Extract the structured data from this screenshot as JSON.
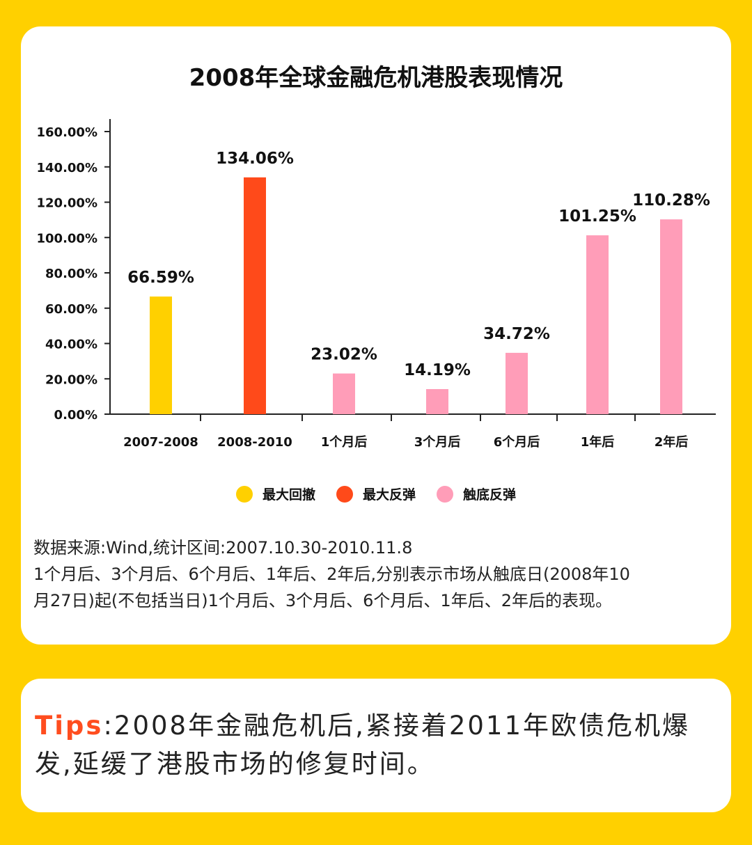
{
  "chart_data": {
    "type": "bar",
    "title": "2008年全球金融危机港股表现情况",
    "categories": [
      "2007-2008",
      "2008-2010",
      "1个月后",
      "3个月后",
      "6个月后",
      "1年后",
      "2年后"
    ],
    "values": [
      66.59,
      134.06,
      23.02,
      14.19,
      34.72,
      101.25,
      110.28
    ],
    "value_labels": [
      "66.59%",
      "134.06%",
      "23.02%",
      "14.19%",
      "34.72%",
      "101.25%",
      "110.28%"
    ],
    "category_group": [
      "最大回撤",
      "最大反弹",
      "触底反弹",
      "触底反弹",
      "触底反弹",
      "触底反弹",
      "触底反弹"
    ],
    "ylim": [
      0,
      160
    ],
    "yticks": [
      0,
      20,
      40,
      60,
      80,
      100,
      120,
      140,
      160
    ],
    "ytick_labels": [
      "0.00%",
      "20.00%",
      "40.00%",
      "60.00%",
      "80.00%",
      "100.00%",
      "120.00%",
      "140.00%",
      "160.00%"
    ],
    "legend": [
      {
        "label": "最大回撤",
        "color": "#FFD000"
      },
      {
        "label": "最大反弹",
        "color": "#FF4A1A"
      },
      {
        "label": "触底反弹",
        "color": "#FF9DB8"
      }
    ],
    "legend_position": "bottom",
    "grid": false
  },
  "source_note": {
    "line1": "数据来源:Wind,统计区间:2007.10.30-2010.11.8",
    "line2": "1个月后、3个月后、6个月后、1年后、2年后,分别表示市场从触底日(2008年10",
    "line3": "月27日)起(不包括当日)1个月后、3个月后、6个月后、1年后、2年后的表现。"
  },
  "tips": {
    "label": "Tips",
    "text": ":2008年金融危机后,紧接着2011年欧债危机爆发,延缓了港股市场的修复时间。"
  },
  "colors": {
    "background": "#FFD000",
    "card": "#FFFFFF",
    "accent": "#FF4D1F"
  }
}
